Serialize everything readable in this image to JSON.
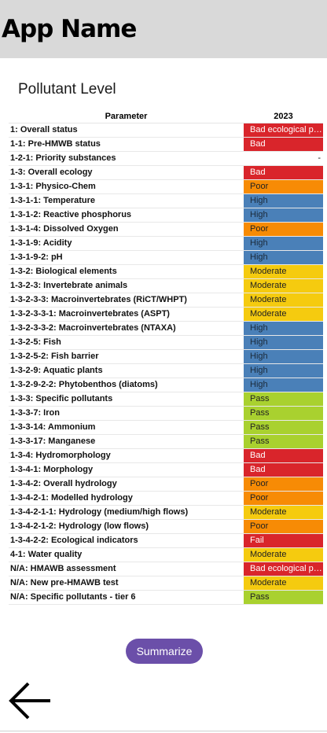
{
  "app": {
    "title": "App Name"
  },
  "section": {
    "title": "Pollutant Level"
  },
  "table": {
    "headers": {
      "parameter": "Parameter",
      "year": "2023"
    },
    "rows": [
      {
        "parameter": "1: Overall status",
        "value": "Bad ecological potential",
        "status": "bad"
      },
      {
        "parameter": "1-1: Pre-HMWB status",
        "value": "Bad",
        "status": "bad"
      },
      {
        "parameter": "1-2-1: Priority substances",
        "value": "-",
        "status": "none"
      },
      {
        "parameter": "1-3: Overall ecology",
        "value": "Bad",
        "status": "bad"
      },
      {
        "parameter": "1-3-1: Physico-Chem",
        "value": "Poor",
        "status": "poor"
      },
      {
        "parameter": "1-3-1-1: Temperature",
        "value": "High",
        "status": "high"
      },
      {
        "parameter": "1-3-1-2: Reactive phosphorus",
        "value": "High",
        "status": "high"
      },
      {
        "parameter": "1-3-1-4: Dissolved Oxygen",
        "value": "Poor",
        "status": "poor"
      },
      {
        "parameter": "1-3-1-9: Acidity",
        "value": "High",
        "status": "high"
      },
      {
        "parameter": "1-3-1-9-2: pH",
        "value": "High",
        "status": "high"
      },
      {
        "parameter": "1-3-2: Biological elements",
        "value": "Moderate",
        "status": "moderate"
      },
      {
        "parameter": "1-3-2-3: Invertebrate animals",
        "value": "Moderate",
        "status": "moderate"
      },
      {
        "parameter": "1-3-2-3-3: Macroinvertebrates (RiCT/WHPT)",
        "value": "Moderate",
        "status": "moderate"
      },
      {
        "parameter": "1-3-2-3-3-1: Macroinvertebrates (ASPT)",
        "value": "Moderate",
        "status": "moderate"
      },
      {
        "parameter": "1-3-2-3-3-2: Macroinvertebrates (NTAXA)",
        "value": "High",
        "status": "high"
      },
      {
        "parameter": "1-3-2-5: Fish",
        "value": "High",
        "status": "high"
      },
      {
        "parameter": "1-3-2-5-2: Fish barrier",
        "value": "High",
        "status": "high"
      },
      {
        "parameter": "1-3-2-9: Aquatic plants",
        "value": "High",
        "status": "high"
      },
      {
        "parameter": "1-3-2-9-2-2: Phytobenthos (diatoms)",
        "value": "High",
        "status": "high"
      },
      {
        "parameter": "1-3-3: Specific pollutants",
        "value": "Pass",
        "status": "pass"
      },
      {
        "parameter": "1-3-3-7: Iron",
        "value": "Pass",
        "status": "pass"
      },
      {
        "parameter": "1-3-3-14: Ammonium",
        "value": "Pass",
        "status": "pass"
      },
      {
        "parameter": "1-3-3-17: Manganese",
        "value": "Pass",
        "status": "pass"
      },
      {
        "parameter": "1-3-4: Hydromorphology",
        "value": "Bad",
        "status": "bad"
      },
      {
        "parameter": "1-3-4-1: Morphology",
        "value": "Bad",
        "status": "bad"
      },
      {
        "parameter": "1-3-4-2: Overall hydrology",
        "value": "Poor",
        "status": "poor"
      },
      {
        "parameter": "1-3-4-2-1: Modelled hydrology",
        "value": "Poor",
        "status": "poor"
      },
      {
        "parameter": "1-3-4-2-1-1: Hydrology (medium/high flows)",
        "value": "Moderate",
        "status": "moderate"
      },
      {
        "parameter": "1-3-4-2-1-2: Hydrology (low flows)",
        "value": "Poor",
        "status": "poor"
      },
      {
        "parameter": "1-3-4-2-2: Ecological indicators",
        "value": "Fail",
        "status": "fail"
      },
      {
        "parameter": "4-1: Water quality",
        "value": "Moderate",
        "status": "moderate"
      },
      {
        "parameter": "N/A: HMAWB assessment",
        "value": "Bad ecological potential",
        "status": "bad"
      },
      {
        "parameter": "N/A: New pre-HMAWB test",
        "value": "Moderate",
        "status": "moderate"
      },
      {
        "parameter": "N/A: Specific pollutants - tier 6",
        "value": "Pass",
        "status": "pass"
      }
    ]
  },
  "status_colors": {
    "bad": "#d9252b",
    "fail": "#d9252b",
    "poor": "#f78b05",
    "moderate": "#f5cb0f",
    "high": "#4a80b8",
    "pass": "#a9d12f",
    "none": "#ffffff"
  },
  "status_text_colors": {
    "bad": "#ffffff",
    "fail": "#ffffff",
    "poor": "#222222",
    "moderate": "#222222",
    "high": "#1b2a3a",
    "pass": "#222222",
    "none": "#111111"
  },
  "actions": {
    "summarize_label": "Summarize"
  },
  "nav": {
    "back_icon": "arrow-left-icon"
  },
  "colors": {
    "header_bg": "#d9d9d9",
    "button_bg": "#6b4fa9"
  }
}
